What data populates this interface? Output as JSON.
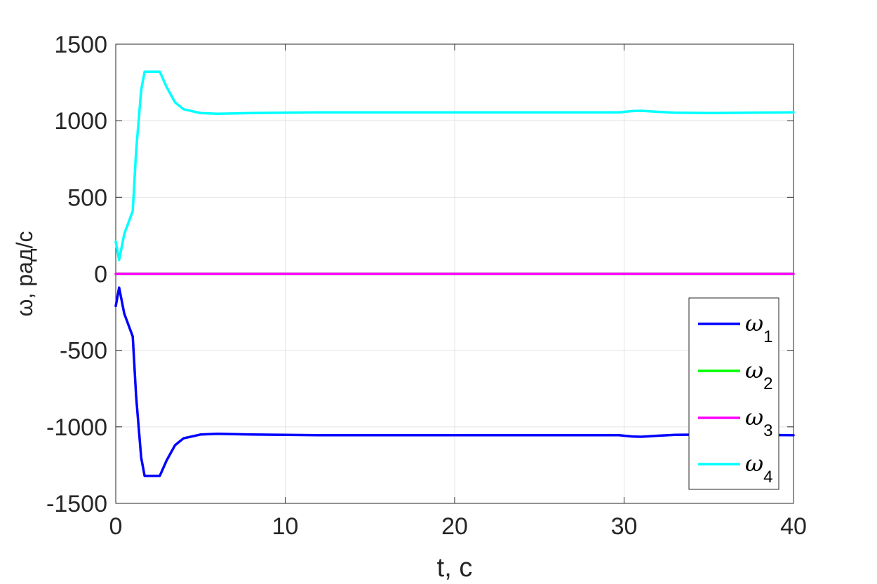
{
  "chart_data": {
    "type": "line",
    "title": "",
    "xlabel": "t, с",
    "ylabel": "ω, рад/с",
    "xlim": [
      0,
      40
    ],
    "ylim": [
      -1500,
      1500
    ],
    "xticks": [
      0,
      10,
      20,
      30,
      40
    ],
    "yticks": [
      -1500,
      -1000,
      -500,
      0,
      500,
      1000,
      1500
    ],
    "xtick_labels": [
      "0",
      "10",
      "20",
      "30",
      "40"
    ],
    "ytick_labels": [
      "-1500",
      "-1000",
      "-500",
      "0",
      "500",
      "1000",
      "1500"
    ],
    "grid": true,
    "legend_position": "lower-right",
    "series": [
      {
        "name": "ω1",
        "color": "#0000ff",
        "x": [
          0,
          0.2,
          0.5,
          1.0,
          1.2,
          1.5,
          1.7,
          2.0,
          2.6,
          3.0,
          3.5,
          4.0,
          5.0,
          6.0,
          8.0,
          12.0,
          20.0,
          29.7,
          30.0,
          30.5,
          31.0,
          32.0,
          33.0,
          35.0,
          38.0,
          40.0
        ],
        "y": [
          -210,
          -90,
          -260,
          -410,
          -800,
          -1200,
          -1320,
          -1320,
          -1320,
          -1220,
          -1120,
          -1075,
          -1050,
          -1045,
          -1050,
          -1055,
          -1055,
          -1055,
          -1058,
          -1063,
          -1065,
          -1058,
          -1052,
          -1050,
          -1053,
          -1055
        ]
      },
      {
        "name": "ω2",
        "color": "#00ff00",
        "x": [
          0,
          40
        ],
        "y": [
          0,
          0
        ]
      },
      {
        "name": "ω3",
        "color": "#ff00ff",
        "x": [
          0,
          40
        ],
        "y": [
          0,
          0
        ]
      },
      {
        "name": "ω4",
        "color": "#00ffff",
        "x": [
          0,
          0.2,
          0.5,
          1.0,
          1.2,
          1.5,
          1.7,
          2.0,
          2.6,
          3.0,
          3.5,
          4.0,
          5.0,
          6.0,
          8.0,
          12.0,
          20.0,
          29.7,
          30.0,
          30.5,
          31.0,
          32.0,
          33.0,
          35.0,
          38.0,
          40.0
        ],
        "y": [
          210,
          90,
          260,
          410,
          800,
          1200,
          1320,
          1320,
          1320,
          1220,
          1120,
          1075,
          1050,
          1045,
          1050,
          1055,
          1055,
          1055,
          1058,
          1063,
          1065,
          1058,
          1052,
          1050,
          1053,
          1055
        ]
      }
    ],
    "legend": [
      {
        "symbol": "ω",
        "sub": "1",
        "color": "#0000ff"
      },
      {
        "symbol": "ω",
        "sub": "2",
        "color": "#00ff00"
      },
      {
        "symbol": "ω",
        "sub": "3",
        "color": "#ff00ff"
      },
      {
        "symbol": "ω",
        "sub": "4",
        "color": "#00ffff"
      }
    ]
  }
}
